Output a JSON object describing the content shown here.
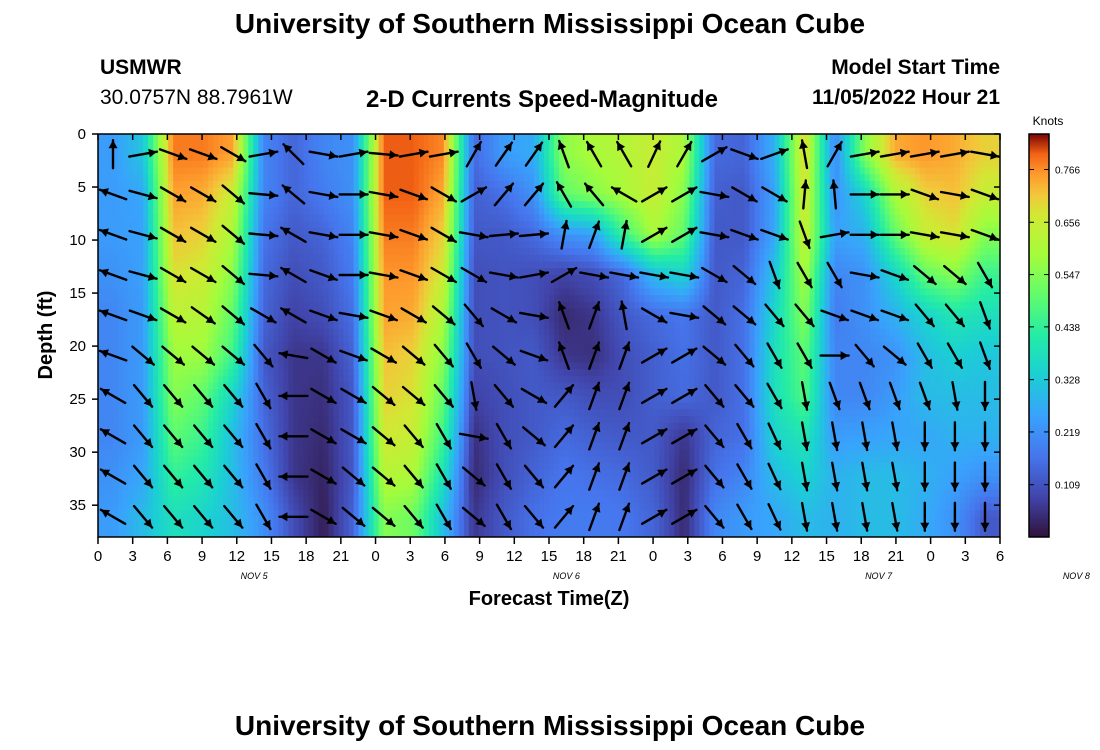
{
  "page": {
    "title": "University of Southern Mississippi Ocean Cube",
    "station": "USMWR",
    "coords": "30.0757N  88.7961W",
    "subtitle": "2-D Currents Speed-Magnitude",
    "model_start_label": "Model Start Time",
    "model_start_value": "11/05/2022 Hour 21",
    "footer_title": "University of Southern Mississippi Ocean Cube"
  },
  "chart_data": {
    "type": "heatmap",
    "xlabel": "Forecast Time(Z)",
    "ylabel": "Depth (ft)",
    "x_tick_labels": [
      "0",
      "3",
      "6",
      "9",
      "12",
      "15",
      "18",
      "21",
      "0",
      "3",
      "6",
      "9",
      "12",
      "15",
      "18",
      "21",
      "0",
      "3",
      "6",
      "9",
      "12",
      "15",
      "18",
      "21",
      "0",
      "3",
      "6"
    ],
    "date_labels": [
      {
        "text": "NOV 5",
        "tick_index": 4.5
      },
      {
        "text": "NOV 6",
        "tick_index": 13.5
      },
      {
        "text": "NOV 7",
        "tick_index": 22.5
      },
      {
        "text": "NOV 8",
        "tick_index": 28.2
      }
    ],
    "y_ticks": [
      0,
      5,
      10,
      15,
      20,
      25,
      30,
      35
    ],
    "ylim": [
      38,
      0
    ],
    "colorbar": {
      "label": "Knots",
      "ticks": [
        "0.766",
        "0.656",
        "0.547",
        "0.438",
        "0.328",
        "0.219",
        "0.109"
      ],
      "tick_values": [
        0.766,
        0.656,
        0.547,
        0.438,
        0.328,
        0.219,
        0.109
      ],
      "range": [
        0.0,
        0.84
      ]
    },
    "speed_knots": [
      [
        0.24,
        0.32,
        0.78,
        0.78,
        0.75,
        0.2,
        0.14,
        0.2,
        0.22,
        0.8,
        0.8,
        0.77,
        0.15,
        0.24,
        0.27,
        0.56,
        0.6,
        0.62,
        0.65,
        0.6,
        0.15,
        0.14,
        0.28,
        0.7,
        0.2,
        0.55,
        0.74,
        0.76,
        0.74,
        0.7
      ],
      [
        0.24,
        0.26,
        0.75,
        0.74,
        0.65,
        0.2,
        0.14,
        0.18,
        0.22,
        0.8,
        0.8,
        0.74,
        0.13,
        0.16,
        0.22,
        0.5,
        0.55,
        0.6,
        0.65,
        0.55,
        0.13,
        0.12,
        0.25,
        0.68,
        0.22,
        0.35,
        0.6,
        0.7,
        0.72,
        0.65
      ],
      [
        0.24,
        0.25,
        0.72,
        0.7,
        0.6,
        0.17,
        0.12,
        0.14,
        0.2,
        0.78,
        0.78,
        0.7,
        0.12,
        0.12,
        0.15,
        0.22,
        0.25,
        0.45,
        0.6,
        0.5,
        0.12,
        0.12,
        0.26,
        0.66,
        0.25,
        0.28,
        0.5,
        0.65,
        0.68,
        0.55
      ],
      [
        0.22,
        0.25,
        0.68,
        0.66,
        0.55,
        0.15,
        0.1,
        0.12,
        0.18,
        0.76,
        0.76,
        0.66,
        0.1,
        0.11,
        0.1,
        0.08,
        0.1,
        0.15,
        0.3,
        0.35,
        0.12,
        0.14,
        0.32,
        0.6,
        0.2,
        0.22,
        0.35,
        0.5,
        0.55,
        0.45
      ],
      [
        0.2,
        0.24,
        0.63,
        0.62,
        0.5,
        0.14,
        0.08,
        0.1,
        0.16,
        0.75,
        0.74,
        0.6,
        0.1,
        0.11,
        0.1,
        0.04,
        0.06,
        0.12,
        0.15,
        0.17,
        0.12,
        0.16,
        0.36,
        0.55,
        0.18,
        0.22,
        0.28,
        0.35,
        0.4,
        0.38
      ],
      [
        0.2,
        0.24,
        0.58,
        0.58,
        0.45,
        0.12,
        0.06,
        0.06,
        0.14,
        0.72,
        0.7,
        0.55,
        0.1,
        0.11,
        0.12,
        0.06,
        0.05,
        0.1,
        0.13,
        0.16,
        0.12,
        0.16,
        0.38,
        0.5,
        0.2,
        0.2,
        0.22,
        0.3,
        0.34,
        0.32
      ],
      [
        0.2,
        0.24,
        0.55,
        0.5,
        0.35,
        0.14,
        0.06,
        0.05,
        0.12,
        0.7,
        0.68,
        0.5,
        0.08,
        0.1,
        0.12,
        0.12,
        0.1,
        0.1,
        0.13,
        0.15,
        0.12,
        0.16,
        0.38,
        0.48,
        0.2,
        0.2,
        0.24,
        0.3,
        0.3,
        0.3
      ],
      [
        0.2,
        0.24,
        0.5,
        0.45,
        0.3,
        0.16,
        0.06,
        0.04,
        0.12,
        0.67,
        0.65,
        0.45,
        0.05,
        0.1,
        0.12,
        0.15,
        0.13,
        0.12,
        0.12,
        0.06,
        0.14,
        0.16,
        0.35,
        0.4,
        0.24,
        0.25,
        0.26,
        0.26,
        0.28,
        0.28
      ],
      [
        0.22,
        0.26,
        0.44,
        0.4,
        0.3,
        0.18,
        0.06,
        0.03,
        0.12,
        0.62,
        0.6,
        0.38,
        0.04,
        0.1,
        0.14,
        0.17,
        0.16,
        0.15,
        0.12,
        0.04,
        0.16,
        0.2,
        0.3,
        0.35,
        0.28,
        0.3,
        0.3,
        0.28,
        0.25,
        0.22
      ],
      [
        0.24,
        0.3,
        0.38,
        0.35,
        0.3,
        0.22,
        0.1,
        0.02,
        0.14,
        0.55,
        0.52,
        0.3,
        0.06,
        0.12,
        0.16,
        0.18,
        0.18,
        0.17,
        0.14,
        0.04,
        0.2,
        0.24,
        0.26,
        0.3,
        0.28,
        0.3,
        0.3,
        0.27,
        0.22,
        0.12
      ]
    ],
    "arrows_deg": [
      [
        0,
        80,
        110,
        110,
        120,
        80,
        315,
        100,
        80,
        95,
        80,
        80,
        30,
        35,
        35,
        340,
        330,
        330,
        25,
        30,
        60,
        110,
        70,
        350,
        30,
        80,
        80,
        80,
        80,
        100
      ],
      [
        290,
        105,
        120,
        120,
        130,
        95,
        310,
        100,
        90,
        100,
        110,
        120,
        60,
        40,
        40,
        330,
        320,
        300,
        60,
        60,
        100,
        120,
        120,
        5,
        355,
        90,
        90,
        110,
        100,
        110
      ],
      [
        290,
        105,
        120,
        120,
        130,
        95,
        300,
        100,
        90,
        100,
        110,
        120,
        100,
        85,
        85,
        10,
        20,
        10,
        60,
        60,
        100,
        110,
        110,
        160,
        80,
        90,
        90,
        100,
        100,
        110
      ],
      [
        290,
        105,
        120,
        120,
        130,
        95,
        300,
        110,
        90,
        100,
        110,
        120,
        120,
        100,
        80,
        60,
        100,
        100,
        100,
        100,
        120,
        130,
        160,
        150,
        150,
        100,
        110,
        130,
        130,
        150
      ],
      [
        290,
        110,
        120,
        125,
        130,
        120,
        300,
        110,
        100,
        110,
        120,
        130,
        140,
        120,
        100,
        340,
        20,
        350,
        120,
        100,
        130,
        130,
        140,
        140,
        110,
        110,
        110,
        140,
        140,
        160
      ],
      [
        290,
        130,
        130,
        130,
        130,
        140,
        280,
        120,
        110,
        120,
        130,
        140,
        150,
        130,
        110,
        340,
        20,
        20,
        60,
        60,
        130,
        140,
        150,
        150,
        90,
        140,
        130,
        150,
        150,
        160
      ],
      [
        300,
        140,
        140,
        140,
        140,
        150,
        270,
        120,
        120,
        130,
        130,
        140,
        170,
        140,
        120,
        40,
        20,
        20,
        60,
        60,
        140,
        140,
        150,
        170,
        160,
        160,
        160,
        160,
        170,
        180
      ],
      [
        300,
        140,
        140,
        140,
        140,
        150,
        270,
        120,
        120,
        130,
        140,
        150,
        100,
        150,
        130,
        40,
        20,
        20,
        60,
        60,
        140,
        150,
        155,
        170,
        170,
        170,
        170,
        180,
        180,
        180
      ],
      [
        300,
        140,
        140,
        140,
        140,
        150,
        270,
        120,
        130,
        130,
        140,
        150,
        130,
        150,
        140,
        40,
        20,
        20,
        60,
        60,
        140,
        150,
        155,
        170,
        170,
        170,
        170,
        180,
        180,
        180
      ],
      [
        300,
        140,
        140,
        140,
        140,
        150,
        270,
        120,
        130,
        130,
        140,
        150,
        130,
        150,
        140,
        40,
        20,
        20,
        60,
        60,
        140,
        150,
        155,
        170,
        170,
        170,
        170,
        180,
        180,
        180
      ]
    ]
  }
}
